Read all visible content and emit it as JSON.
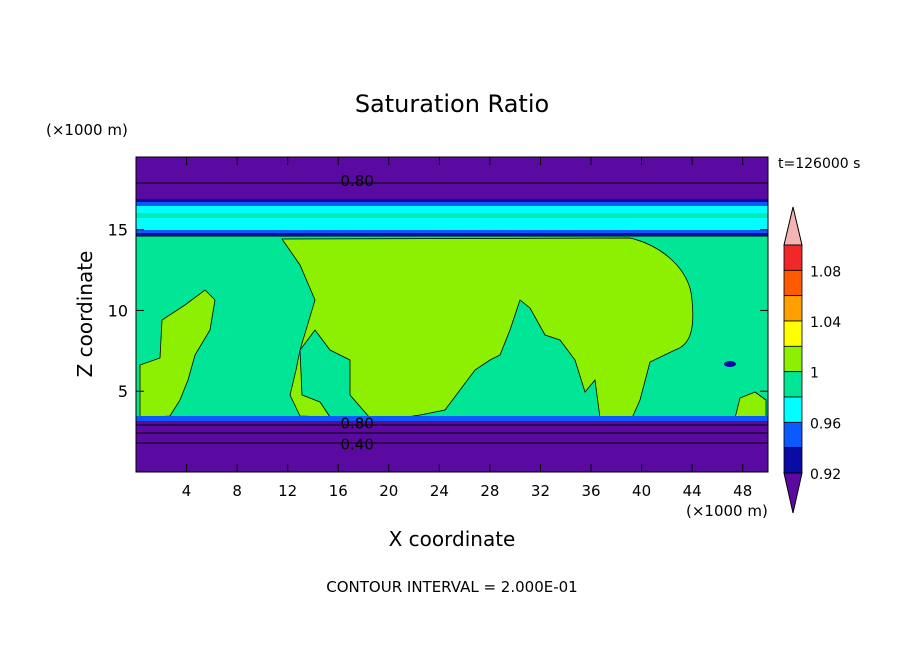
{
  "chart_data": {
    "type": "heatmap",
    "title": "Saturation Ratio",
    "xlabel": "X coordinate",
    "ylabel": "Z coordinate",
    "x_unit": "(×1000 m)",
    "y_unit": "(×1000 m)",
    "time_label": "t=126000 s",
    "footer": "CONTOUR INTERVAL = 2.000E-01",
    "xlim": [
      0,
      50
    ],
    "ylim": [
      0,
      19.5
    ],
    "x_ticks": [
      4,
      8,
      12,
      16,
      20,
      24,
      28,
      32,
      36,
      40,
      44,
      48
    ],
    "y_ticks": [
      5,
      10,
      15
    ],
    "contour_labels": [
      {
        "text": "0.80",
        "x": 17.5,
        "y": 18.0
      },
      {
        "text": "0.80",
        "x": 17.5,
        "y": 3.0
      },
      {
        "text": "0.40",
        "x": 17.5,
        "y": 1.7
      }
    ],
    "colorbar": {
      "levels": [
        0.92,
        0.94,
        0.96,
        0.98,
        1.0,
        1.02,
        1.04,
        1.06,
        1.08,
        1.1
      ],
      "tick_labels": [
        "0.92",
        "0.96",
        "1",
        "1.04",
        "1.08"
      ],
      "colors": [
        "#5a0aa0",
        "#0a0aa5",
        "#0a5aff",
        "#00ffff",
        "#00e696",
        "#8cf000",
        "#ffff00",
        "#ffa000",
        "#ff5a00",
        "#f02828",
        "#f5b4b4"
      ]
    },
    "colors": {
      "dry": "#5a0aa0",
      "c092": "#0a0aa5",
      "c096": "#0a5aff",
      "c098": "#00ffff",
      "c100": "#00e696",
      "c102": "#8cf000",
      "c104": "#ffff00",
      "c106": "#ffa000",
      "c108": "#ff5a00",
      "c110": "#f02828",
      "top": "#f5b4b4"
    }
  }
}
